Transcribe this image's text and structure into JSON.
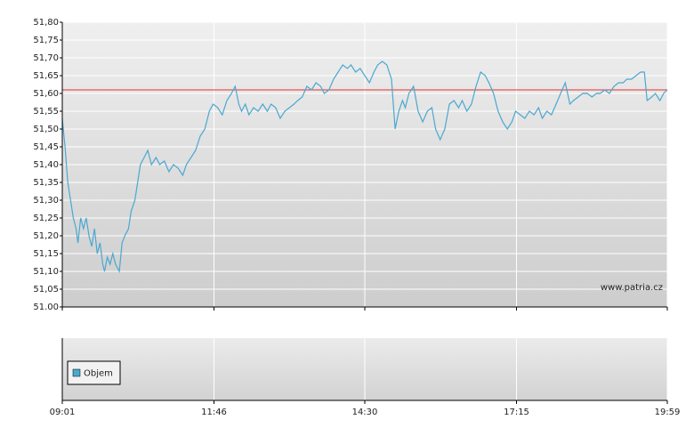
{
  "chart_data": {
    "type": "line",
    "x": [
      0,
      3,
      6,
      9,
      12,
      15,
      17,
      20,
      23,
      26,
      29,
      32,
      35,
      38,
      41,
      44,
      46,
      49,
      52,
      55,
      58,
      62,
      65,
      68,
      72,
      75,
      79,
      82,
      85,
      89,
      93,
      97,
      102,
      106,
      111,
      116,
      121,
      126,
      131,
      135,
      140,
      145,
      150,
      155,
      160,
      164,
      169,
      174,
      179,
      184,
      188,
      192,
      195,
      199,
      203,
      208,
      213,
      218,
      223,
      227,
      232,
      237,
      242,
      247,
      252,
      256,
      261,
      266,
      271,
      276,
      281,
      285,
      290,
      295,
      300,
      305,
      310,
      314,
      319,
      324,
      329,
      334,
      339,
      343,
      348,
      353,
      358,
      362,
      366,
      370,
      373,
      377,
      382,
      387,
      392,
      397,
      402,
      406,
      411,
      416,
      421,
      426,
      431,
      435,
      440,
      445,
      450,
      455,
      460,
      464,
      469,
      474,
      479,
      484,
      489,
      493,
      498,
      503,
      508,
      513,
      518,
      522,
      527,
      532,
      537,
      542,
      547,
      552,
      556,
      561,
      566,
      571,
      576,
      581,
      585,
      590,
      595,
      600,
      605,
      610,
      614,
      619,
      624,
      629,
      633,
      636,
      641,
      645,
      650,
      654,
      658
    ],
    "series": [
      {
        "color": "#4aa8d0",
        "values": [
          51.53,
          51.45,
          51.35,
          51.3,
          51.25,
          51.22,
          51.18,
          51.25,
          51.22,
          51.25,
          51.2,
          51.17,
          51.22,
          51.15,
          51.18,
          51.12,
          51.1,
          51.14,
          51.12,
          51.15,
          51.12,
          51.1,
          51.18,
          51.2,
          51.22,
          51.27,
          51.3,
          51.35,
          51.4,
          51.42,
          51.44,
          51.4,
          51.42,
          51.4,
          51.41,
          51.38,
          51.4,
          51.39,
          51.37,
          51.4,
          51.42,
          51.44,
          51.48,
          51.5,
          51.55,
          51.57,
          51.56,
          51.54,
          51.58,
          51.6,
          51.62,
          51.57,
          51.55,
          51.57,
          51.54,
          51.56,
          51.55,
          51.57,
          51.55,
          51.57,
          51.56,
          51.53,
          51.55,
          51.56,
          51.57,
          51.58,
          51.59,
          51.62,
          51.61,
          51.63,
          51.62,
          51.6,
          51.61,
          51.64,
          51.66,
          51.68,
          51.67,
          51.68,
          51.66,
          51.67,
          51.65,
          51.63,
          51.66,
          51.68,
          51.69,
          51.68,
          51.64,
          51.5,
          51.55,
          51.58,
          51.56,
          51.6,
          51.62,
          51.55,
          51.52,
          51.55,
          51.56,
          51.5,
          51.47,
          51.5,
          51.57,
          51.58,
          51.56,
          51.58,
          51.55,
          51.57,
          51.62,
          51.66,
          51.65,
          51.63,
          51.6,
          51.55,
          51.52,
          51.5,
          51.52,
          51.55,
          51.54,
          51.53,
          51.55,
          51.54,
          51.56,
          51.53,
          51.55,
          51.54,
          51.57,
          51.6,
          51.63,
          51.57,
          51.58,
          51.59,
          51.6,
          51.6,
          51.59,
          51.6,
          51.6,
          51.61,
          51.6,
          51.62,
          51.63,
          51.63,
          51.64,
          51.64,
          51.65,
          51.66,
          51.66,
          51.58,
          51.59,
          51.6,
          51.58,
          51.6,
          51.61
        ]
      }
    ],
    "xlim": [
      0,
      658
    ],
    "xticks": [
      {
        "value": 0,
        "label": "09:01"
      },
      {
        "value": 165,
        "label": "11:46"
      },
      {
        "value": 329,
        "label": "14:30"
      },
      {
        "value": 494,
        "label": "17:15"
      },
      {
        "value": 658,
        "label": "19:59"
      }
    ],
    "ylim": [
      51.0,
      51.8
    ],
    "yticks": [
      {
        "value": 51.0,
        "label": "51.00"
      },
      {
        "value": 51.05,
        "label": "51,05"
      },
      {
        "value": 51.1,
        "label": "51,10"
      },
      {
        "value": 51.15,
        "label": "51,15"
      },
      {
        "value": 51.2,
        "label": "51,20"
      },
      {
        "value": 51.25,
        "label": "51,25"
      },
      {
        "value": 51.3,
        "label": "51,30"
      },
      {
        "value": 51.35,
        "label": "51,35"
      },
      {
        "value": 51.4,
        "label": "51,40"
      },
      {
        "value": 51.45,
        "label": "51,45"
      },
      {
        "value": 51.5,
        "label": "51,50"
      },
      {
        "value": 51.55,
        "label": "51,55"
      },
      {
        "value": 51.6,
        "label": "51,60"
      },
      {
        "value": 51.65,
        "label": "51,65"
      },
      {
        "value": 51.7,
        "label": "51,70"
      },
      {
        "value": 51.75,
        "label": "51,75"
      },
      {
        "value": 51.8,
        "label": "51,80"
      }
    ],
    "grid": true,
    "reference_line": {
      "value": 51.61,
      "color": "#e03030"
    },
    "watermark": "www.patria.cz",
    "volume_legend": {
      "label": "Objem",
      "color": "#4aa8d0"
    }
  }
}
